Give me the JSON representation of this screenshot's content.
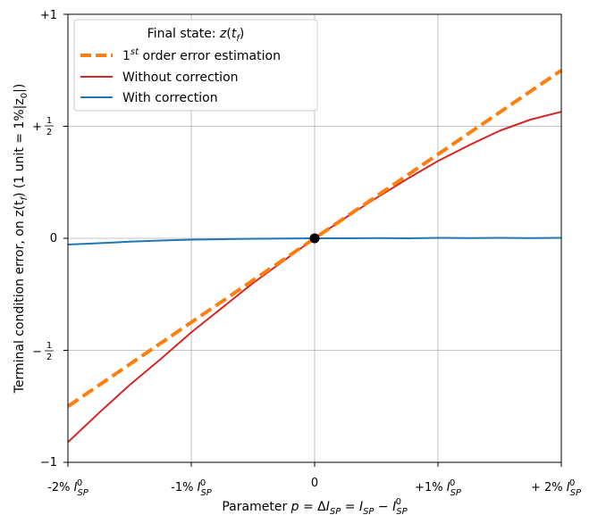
{
  "chart_data": {
    "type": "line",
    "xlabel_prefix": "Parameter",
    "ylabel": "Terminal condition error, on z(t",
    "ylabel_mid": ") (1 unit = 1%|z",
    "ylabel_end": "|)",
    "xlim": [
      -2,
      2
    ],
    "ylim": [
      -1,
      1
    ],
    "grid": true,
    "legend_position": "top-left",
    "legend_title": "Final state: ",
    "x_ticks": [
      {
        "value": -2,
        "label": "-2%"
      },
      {
        "value": -1,
        "label": "-1%"
      },
      {
        "value": 0,
        "label": "0"
      },
      {
        "value": 1,
        "label": "+1%"
      },
      {
        "value": 2,
        "label": "+ 2%"
      }
    ],
    "y_ticks": [
      {
        "value": 1,
        "label": "+1"
      },
      {
        "value": 0.5,
        "label": "+"
      },
      {
        "value": 0,
        "label": "0"
      },
      {
        "value": -0.5,
        "label": "−"
      },
      {
        "value": -1,
        "label": "−1"
      }
    ],
    "series": [
      {
        "name": "1st order error estimation",
        "color": "#ff7f0e",
        "style": "dashed",
        "x": [
          -2,
          2
        ],
        "y": [
          -0.75,
          0.75
        ]
      },
      {
        "name": "Without correction",
        "color": "#d62728",
        "style": "solid",
        "x": [
          -2,
          -1.75,
          -1.5,
          -1.25,
          -1,
          -0.75,
          -0.5,
          -0.25,
          0,
          0.25,
          0.5,
          0.75,
          1,
          1.25,
          1.5,
          1.75,
          2
        ],
        "y": [
          -0.91,
          -0.78,
          -0.655,
          -0.54,
          -0.42,
          -0.31,
          -0.2,
          -0.1,
          0,
          0.092,
          0.18,
          0.265,
          0.345,
          0.415,
          0.48,
          0.53,
          0.565
        ]
      },
      {
        "name": "With correction",
        "color": "#1f77b4",
        "style": "solid",
        "x": [
          -2,
          -1.75,
          -1.5,
          -1.25,
          -1,
          -0.75,
          -0.5,
          -0.25,
          0,
          0.25,
          0.5,
          0.75,
          1,
          1.25,
          1.5,
          1.75,
          2
        ],
        "y": [
          -0.028,
          -0.022,
          -0.015,
          -0.01,
          -0.006,
          -0.004,
          -0.002,
          -0.001,
          0,
          0,
          0.001,
          0,
          0.002,
          0.001,
          0.002,
          0.001,
          0.002
        ]
      }
    ],
    "point": {
      "x": 0,
      "y": 0,
      "color": "#000000"
    }
  }
}
